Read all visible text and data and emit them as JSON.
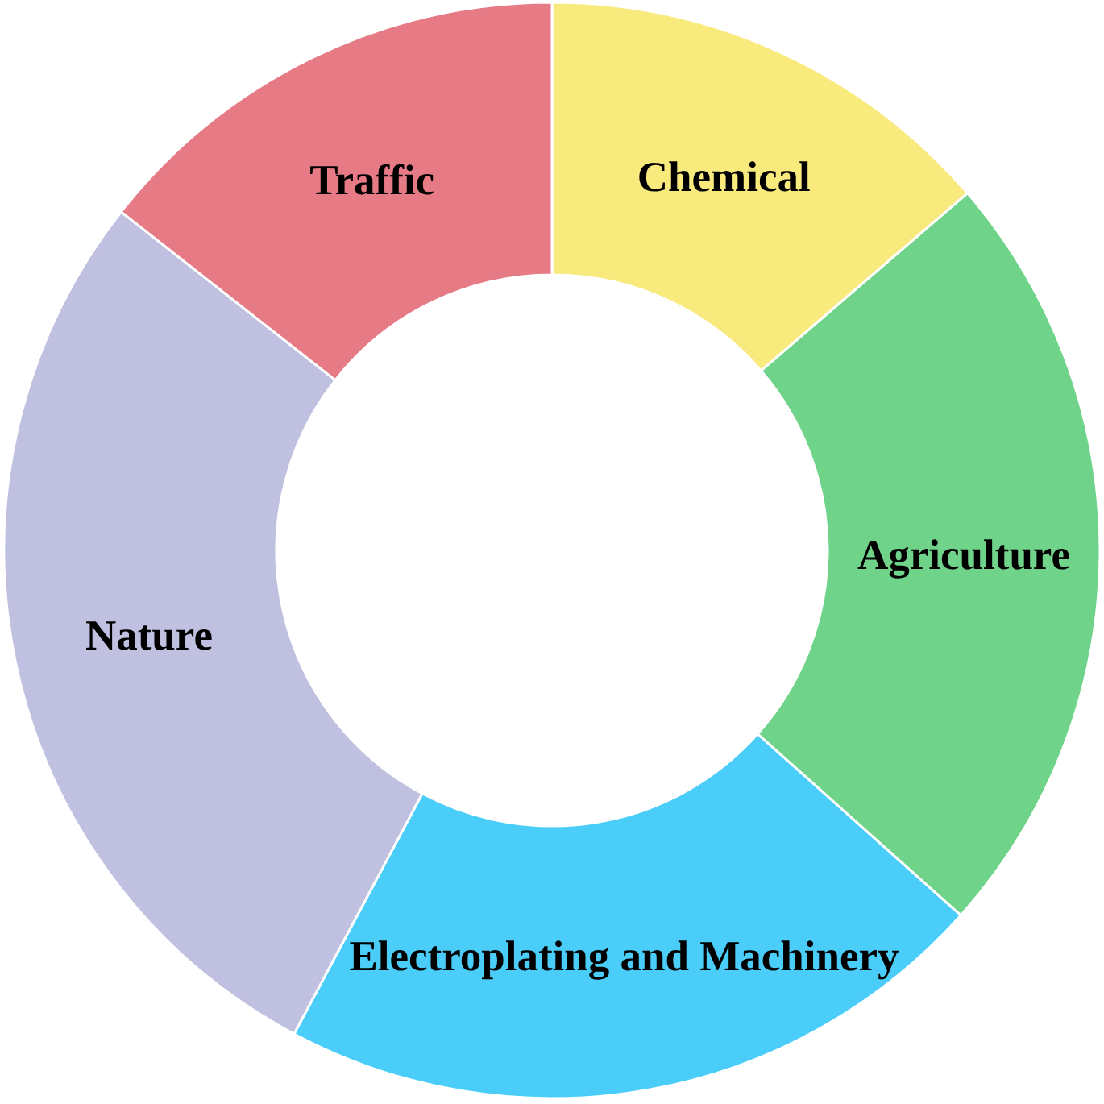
{
  "chart_data": {
    "type": "donut",
    "categories": [
      "Chemical",
      "Agriculture",
      "Electroplating and Machinery",
      "Nature",
      "Traffic"
    ],
    "values": [
      13.7,
      22.9,
      21.2,
      27.8,
      14.4
    ],
    "colors": [
      "#f9ea7e",
      "#6fd38a",
      "#4acef9",
      "#c0c1e0",
      "#e67b86"
    ]
  }
}
